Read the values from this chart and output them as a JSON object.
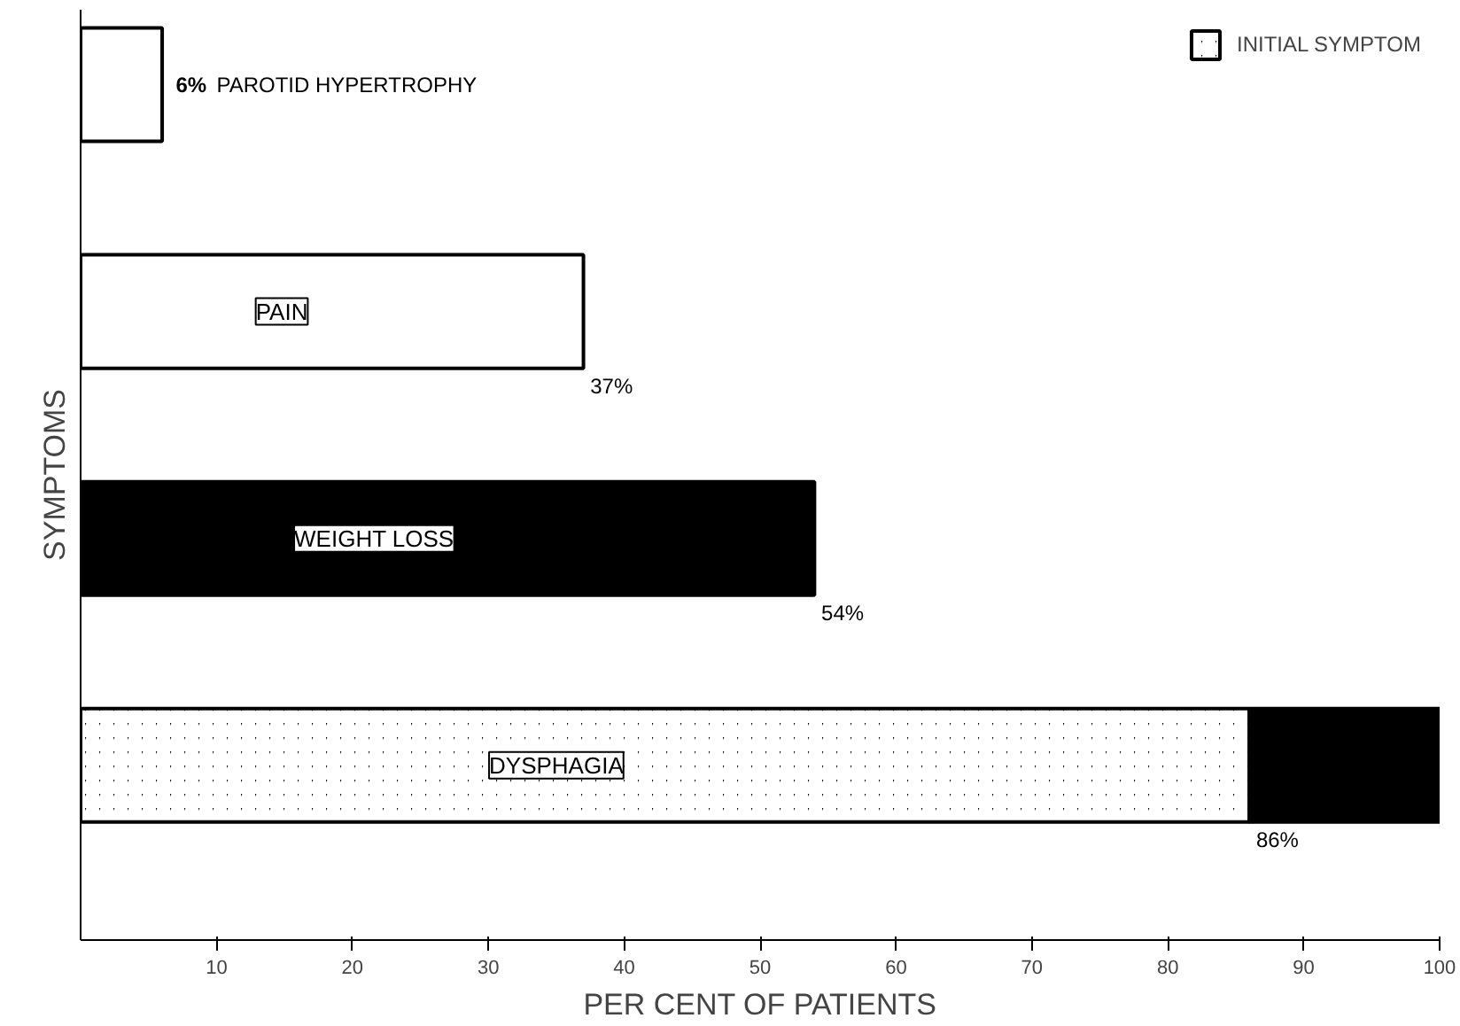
{
  "chart_data": {
    "type": "bar",
    "orientation": "horizontal",
    "stacked": true,
    "xlabel": "PER CENT OF PATIENTS",
    "ylabel": "SYMPTOMS",
    "categories": [
      "PAROTID HYPERTROPHY",
      "PAIN",
      "WEIGHT LOSS",
      "DYSPHAGIA"
    ],
    "series": [
      {
        "name": "INITIAL SYMPTOM",
        "color": "#000000",
        "values": [
          null,
          null,
          null,
          86
        ],
        "value_labels": [
          null,
          null,
          null,
          "86%"
        ]
      },
      {
        "colors": [
          "#ffffff",
          "#ffffff",
          "#000000",
          "#000000"
        ],
        "values": [
          6,
          37,
          54,
          14
        ],
        "value_labels": [
          "6%",
          "37%",
          "54%",
          null
        ]
      }
    ],
    "xlim": [
      0,
      100
    ],
    "xticks": [
      10,
      20,
      30,
      40,
      50,
      60,
      70,
      80,
      90,
      100
    ],
    "legend": "top right",
    "grid": false
  }
}
